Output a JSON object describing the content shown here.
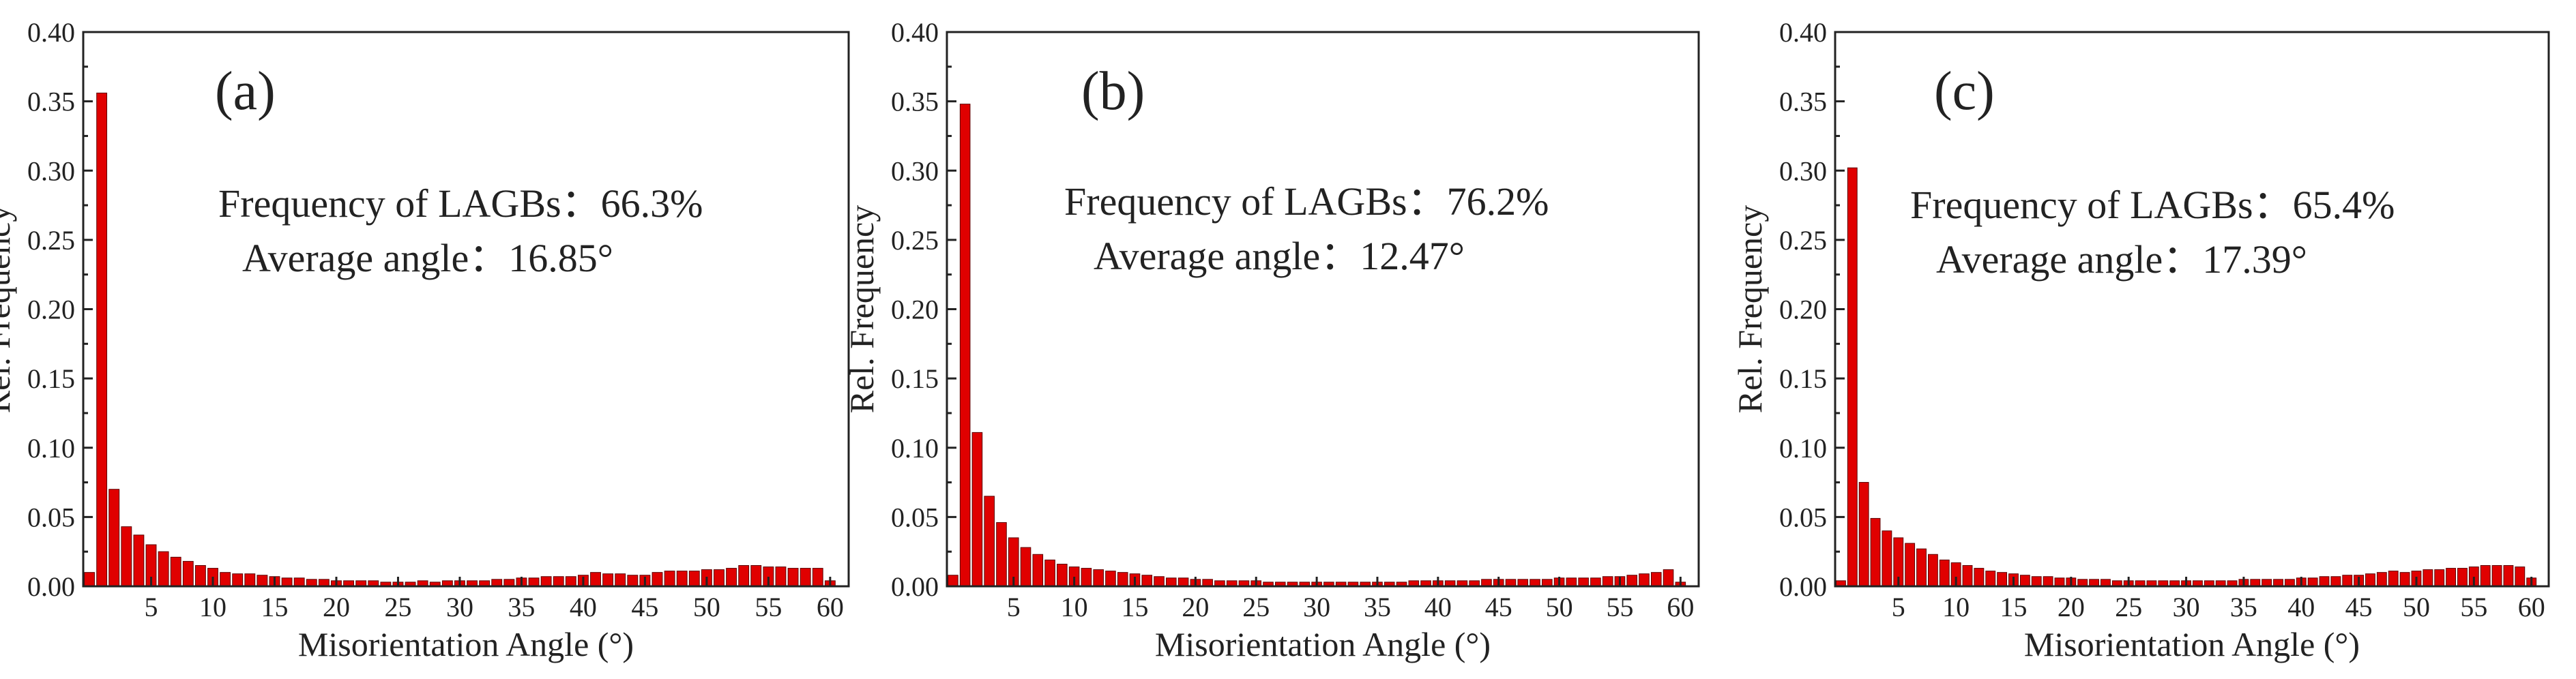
{
  "chart_data": [
    {
      "type": "bar",
      "panel_label": "(a)",
      "annotation_line1": "Frequency of LAGBs：66.3%",
      "annotation_line2": "Average angle：16.85°",
      "xlabel": "Misorientation Angle (°)",
      "ylabel": "Rel. Frequency",
      "xlim": [
        -0.5,
        61.5
      ],
      "ylim": [
        0,
        0.4
      ],
      "xticks": [
        5,
        10,
        15,
        20,
        25,
        30,
        35,
        40,
        45,
        50,
        55,
        60
      ],
      "yticks": [
        0.0,
        0.05,
        0.1,
        0.15,
        0.2,
        0.25,
        0.3,
        0.35,
        0.4
      ],
      "bar_color": "#e00000",
      "x": [
        0,
        1,
        2,
        3,
        4,
        5,
        6,
        7,
        8,
        9,
        10,
        11,
        12,
        13,
        14,
        15,
        16,
        17,
        18,
        19,
        20,
        21,
        22,
        23,
        24,
        25,
        26,
        27,
        28,
        29,
        30,
        31,
        32,
        33,
        34,
        35,
        36,
        37,
        38,
        39,
        40,
        41,
        42,
        43,
        44,
        45,
        46,
        47,
        48,
        49,
        50,
        51,
        52,
        53,
        54,
        55,
        56,
        57,
        58,
        59,
        60
      ],
      "values": [
        0.01,
        0.356,
        0.07,
        0.043,
        0.037,
        0.03,
        0.025,
        0.021,
        0.018,
        0.015,
        0.013,
        0.01,
        0.009,
        0.009,
        0.008,
        0.007,
        0.006,
        0.006,
        0.005,
        0.005,
        0.004,
        0.004,
        0.004,
        0.004,
        0.003,
        0.003,
        0.003,
        0.004,
        0.003,
        0.004,
        0.004,
        0.004,
        0.004,
        0.005,
        0.005,
        0.006,
        0.006,
        0.007,
        0.007,
        0.007,
        0.008,
        0.01,
        0.009,
        0.009,
        0.008,
        0.008,
        0.01,
        0.011,
        0.011,
        0.011,
        0.012,
        0.012,
        0.013,
        0.015,
        0.015,
        0.014,
        0.014,
        0.013,
        0.013,
        0.013,
        0.004
      ]
    },
    {
      "type": "bar",
      "panel_label": "(b)",
      "annotation_line1": "Frequency of LAGBs：76.2%",
      "annotation_line2": "Average angle：12.47°",
      "xlabel": "Misorientation Angle (°)",
      "ylabel": "Rel. Frequency",
      "xlim": [
        -0.5,
        61.5
      ],
      "ylim": [
        0,
        0.4
      ],
      "xticks": [
        5,
        10,
        15,
        20,
        25,
        30,
        35,
        40,
        45,
        50,
        55,
        60
      ],
      "yticks": [
        0.0,
        0.05,
        0.1,
        0.15,
        0.2,
        0.25,
        0.3,
        0.35,
        0.4
      ],
      "bar_color": "#e00000",
      "x": [
        0,
        1,
        2,
        3,
        4,
        5,
        6,
        7,
        8,
        9,
        10,
        11,
        12,
        13,
        14,
        15,
        16,
        17,
        18,
        19,
        20,
        21,
        22,
        23,
        24,
        25,
        26,
        27,
        28,
        29,
        30,
        31,
        32,
        33,
        34,
        35,
        36,
        37,
        38,
        39,
        40,
        41,
        42,
        43,
        44,
        45,
        46,
        47,
        48,
        49,
        50,
        51,
        52,
        53,
        54,
        55,
        56,
        57,
        58,
        59,
        60
      ],
      "values": [
        0.008,
        0.348,
        0.111,
        0.065,
        0.046,
        0.035,
        0.028,
        0.023,
        0.019,
        0.016,
        0.014,
        0.013,
        0.012,
        0.011,
        0.01,
        0.009,
        0.008,
        0.007,
        0.006,
        0.006,
        0.005,
        0.005,
        0.004,
        0.004,
        0.004,
        0.004,
        0.003,
        0.003,
        0.003,
        0.003,
        0.003,
        0.003,
        0.003,
        0.003,
        0.003,
        0.003,
        0.003,
        0.003,
        0.004,
        0.004,
        0.004,
        0.004,
        0.004,
        0.004,
        0.005,
        0.005,
        0.005,
        0.005,
        0.005,
        0.005,
        0.006,
        0.006,
        0.006,
        0.006,
        0.007,
        0.007,
        0.008,
        0.009,
        0.01,
        0.012,
        0.003
      ]
    },
    {
      "type": "bar",
      "panel_label": "(c)",
      "annotation_line1": "Frequency of LAGBs：65.4%",
      "annotation_line2": "Average angle：17.39°",
      "xlabel": "Misorientation Angle (°)",
      "ylabel": "Rel. Frequency",
      "xlim": [
        -0.5,
        61.5
      ],
      "ylim": [
        0,
        0.4
      ],
      "xticks": [
        5,
        10,
        15,
        20,
        25,
        30,
        35,
        40,
        45,
        50,
        55,
        60
      ],
      "yticks": [
        0.0,
        0.05,
        0.1,
        0.15,
        0.2,
        0.25,
        0.3,
        0.35,
        0.4
      ],
      "bar_color": "#e00000",
      "x": [
        0,
        1,
        2,
        3,
        4,
        5,
        6,
        7,
        8,
        9,
        10,
        11,
        12,
        13,
        14,
        15,
        16,
        17,
        18,
        19,
        20,
        21,
        22,
        23,
        24,
        25,
        26,
        27,
        28,
        29,
        30,
        31,
        32,
        33,
        34,
        35,
        36,
        37,
        38,
        39,
        40,
        41,
        42,
        43,
        44,
        45,
        46,
        47,
        48,
        49,
        50,
        51,
        52,
        53,
        54,
        55,
        56,
        57,
        58,
        59,
        60
      ],
      "values": [
        0.004,
        0.302,
        0.075,
        0.049,
        0.04,
        0.035,
        0.031,
        0.027,
        0.023,
        0.019,
        0.017,
        0.015,
        0.013,
        0.011,
        0.01,
        0.009,
        0.008,
        0.007,
        0.007,
        0.006,
        0.006,
        0.005,
        0.005,
        0.005,
        0.004,
        0.004,
        0.004,
        0.004,
        0.004,
        0.004,
        0.004,
        0.004,
        0.004,
        0.004,
        0.004,
        0.005,
        0.005,
        0.005,
        0.005,
        0.005,
        0.006,
        0.006,
        0.007,
        0.007,
        0.008,
        0.008,
        0.009,
        0.01,
        0.011,
        0.01,
        0.011,
        0.012,
        0.012,
        0.013,
        0.013,
        0.014,
        0.015,
        0.015,
        0.015,
        0.014,
        0.006
      ]
    }
  ]
}
